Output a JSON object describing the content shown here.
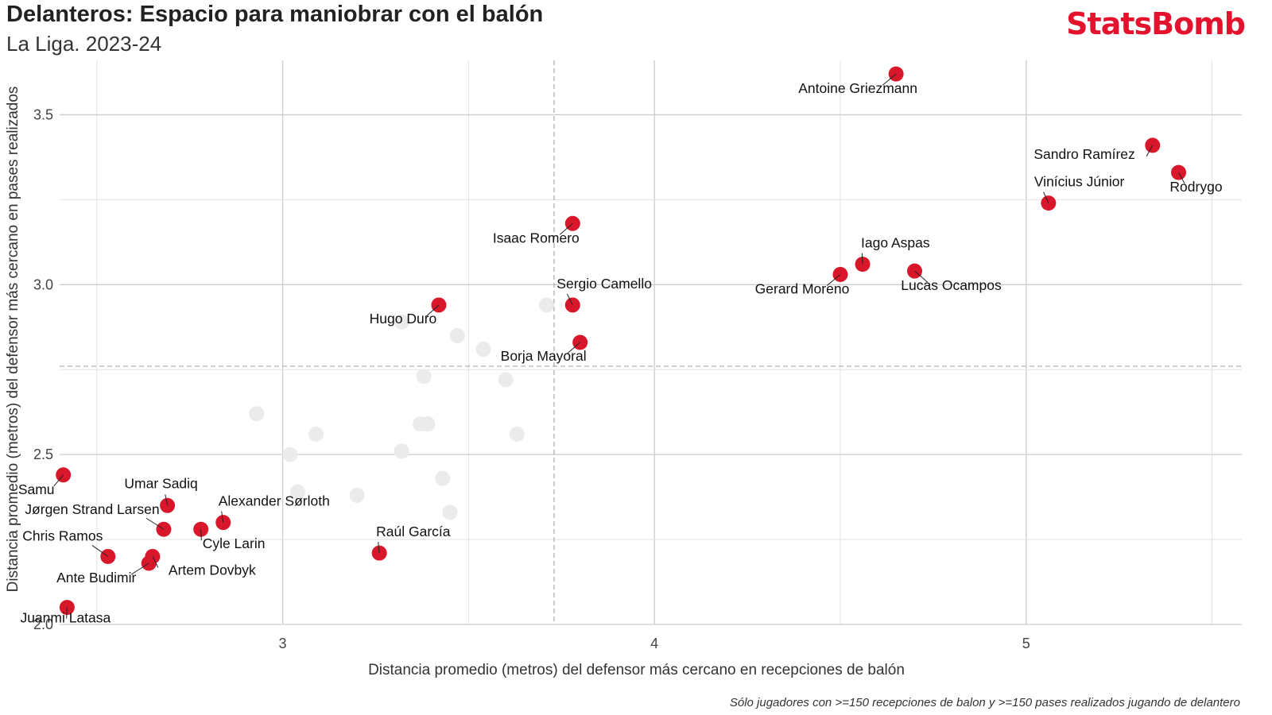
{
  "header": {
    "title": "Delanteros: Espacio para maniobrar con el balón",
    "subtitle": "La Liga. 2023-24",
    "logo_text": "StatsBomb",
    "logo_color": "#e4132d"
  },
  "footnote": "Sólo jugadores con >=150 recepciones de balon y >=150 pases realizados jugando de delantero",
  "chart_data": {
    "type": "scatter",
    "xlabel": "Distancia promedio (metros) del defensor más cercano en recepciones de balón",
    "ylabel": "Distancia promedio (metros) del defensor más cercano en pases realizados",
    "xlim": [
      2.4,
      5.58
    ],
    "ylim": [
      2.0,
      3.66
    ],
    "x_ticks": [
      3,
      4,
      5
    ],
    "y_ticks": [
      2.0,
      2.5,
      3.0,
      3.5
    ],
    "x_tick_labels": [
      "3",
      "4",
      "5"
    ],
    "y_tick_labels": [
      "2.0",
      "2.5",
      "3.0",
      "3.5"
    ],
    "grid": true,
    "mean_lines": {
      "x": 3.73,
      "y": 2.76
    },
    "highlight_color": "#d9172b",
    "background_point_color": "#ebebeb",
    "highlighted": [
      {
        "name": "Antoine Griezmann",
        "x": 4.65,
        "y": 3.62
      },
      {
        "name": "Sandro Ramírez",
        "x": 5.34,
        "y": 3.41
      },
      {
        "name": "Rodrygo",
        "x": 5.41,
        "y": 3.33
      },
      {
        "name": "Vinícius Júnior",
        "x": 5.06,
        "y": 3.24
      },
      {
        "name": "Isaac Romero",
        "x": 3.78,
        "y": 3.18
      },
      {
        "name": "Iago Aspas",
        "x": 4.56,
        "y": 3.06
      },
      {
        "name": "Gerard Moreno",
        "x": 4.5,
        "y": 3.03
      },
      {
        "name": "Lucas Ocampos",
        "x": 4.7,
        "y": 3.04
      },
      {
        "name": "Hugo Duro",
        "x": 3.42,
        "y": 2.94
      },
      {
        "name": "Sergio Camello",
        "x": 3.78,
        "y": 2.94
      },
      {
        "name": "Borja Mayoral",
        "x": 3.8,
        "y": 2.83
      },
      {
        "name": "Samu",
        "x": 2.41,
        "y": 2.44
      },
      {
        "name": "Umar Sadiq",
        "x": 2.69,
        "y": 2.35
      },
      {
        "name": "Jørgen Strand Larsen",
        "x": 2.68,
        "y": 2.28
      },
      {
        "name": "Alexander Sørloth",
        "x": 2.84,
        "y": 2.3
      },
      {
        "name": "Cyle Larin",
        "x": 2.78,
        "y": 2.28
      },
      {
        "name": "Chris Ramos",
        "x": 2.53,
        "y": 2.2
      },
      {
        "name": "Artem Dovbyk",
        "x": 2.65,
        "y": 2.2
      },
      {
        "name": "Ante Budimir",
        "x": 2.64,
        "y": 2.18
      },
      {
        "name": "Raúl García",
        "x": 3.26,
        "y": 2.21
      },
      {
        "name": "Juanmi Latasa",
        "x": 2.42,
        "y": 2.05
      }
    ],
    "others": [
      {
        "x": 3.32,
        "y": 2.89
      },
      {
        "x": 3.71,
        "y": 2.94
      },
      {
        "x": 3.47,
        "y": 2.85
      },
      {
        "x": 3.54,
        "y": 2.81
      },
      {
        "x": 3.6,
        "y": 2.72
      },
      {
        "x": 3.38,
        "y": 2.73
      },
      {
        "x": 2.93,
        "y": 2.62
      },
      {
        "x": 3.09,
        "y": 2.56
      },
      {
        "x": 3.37,
        "y": 2.59
      },
      {
        "x": 3.39,
        "y": 2.59
      },
      {
        "x": 3.63,
        "y": 2.56
      },
      {
        "x": 3.02,
        "y": 2.5
      },
      {
        "x": 3.32,
        "y": 2.51
      },
      {
        "x": 3.43,
        "y": 2.43
      },
      {
        "x": 3.04,
        "y": 2.39
      },
      {
        "x": 3.2,
        "y": 2.38
      },
      {
        "x": 3.45,
        "y": 2.33
      }
    ]
  }
}
